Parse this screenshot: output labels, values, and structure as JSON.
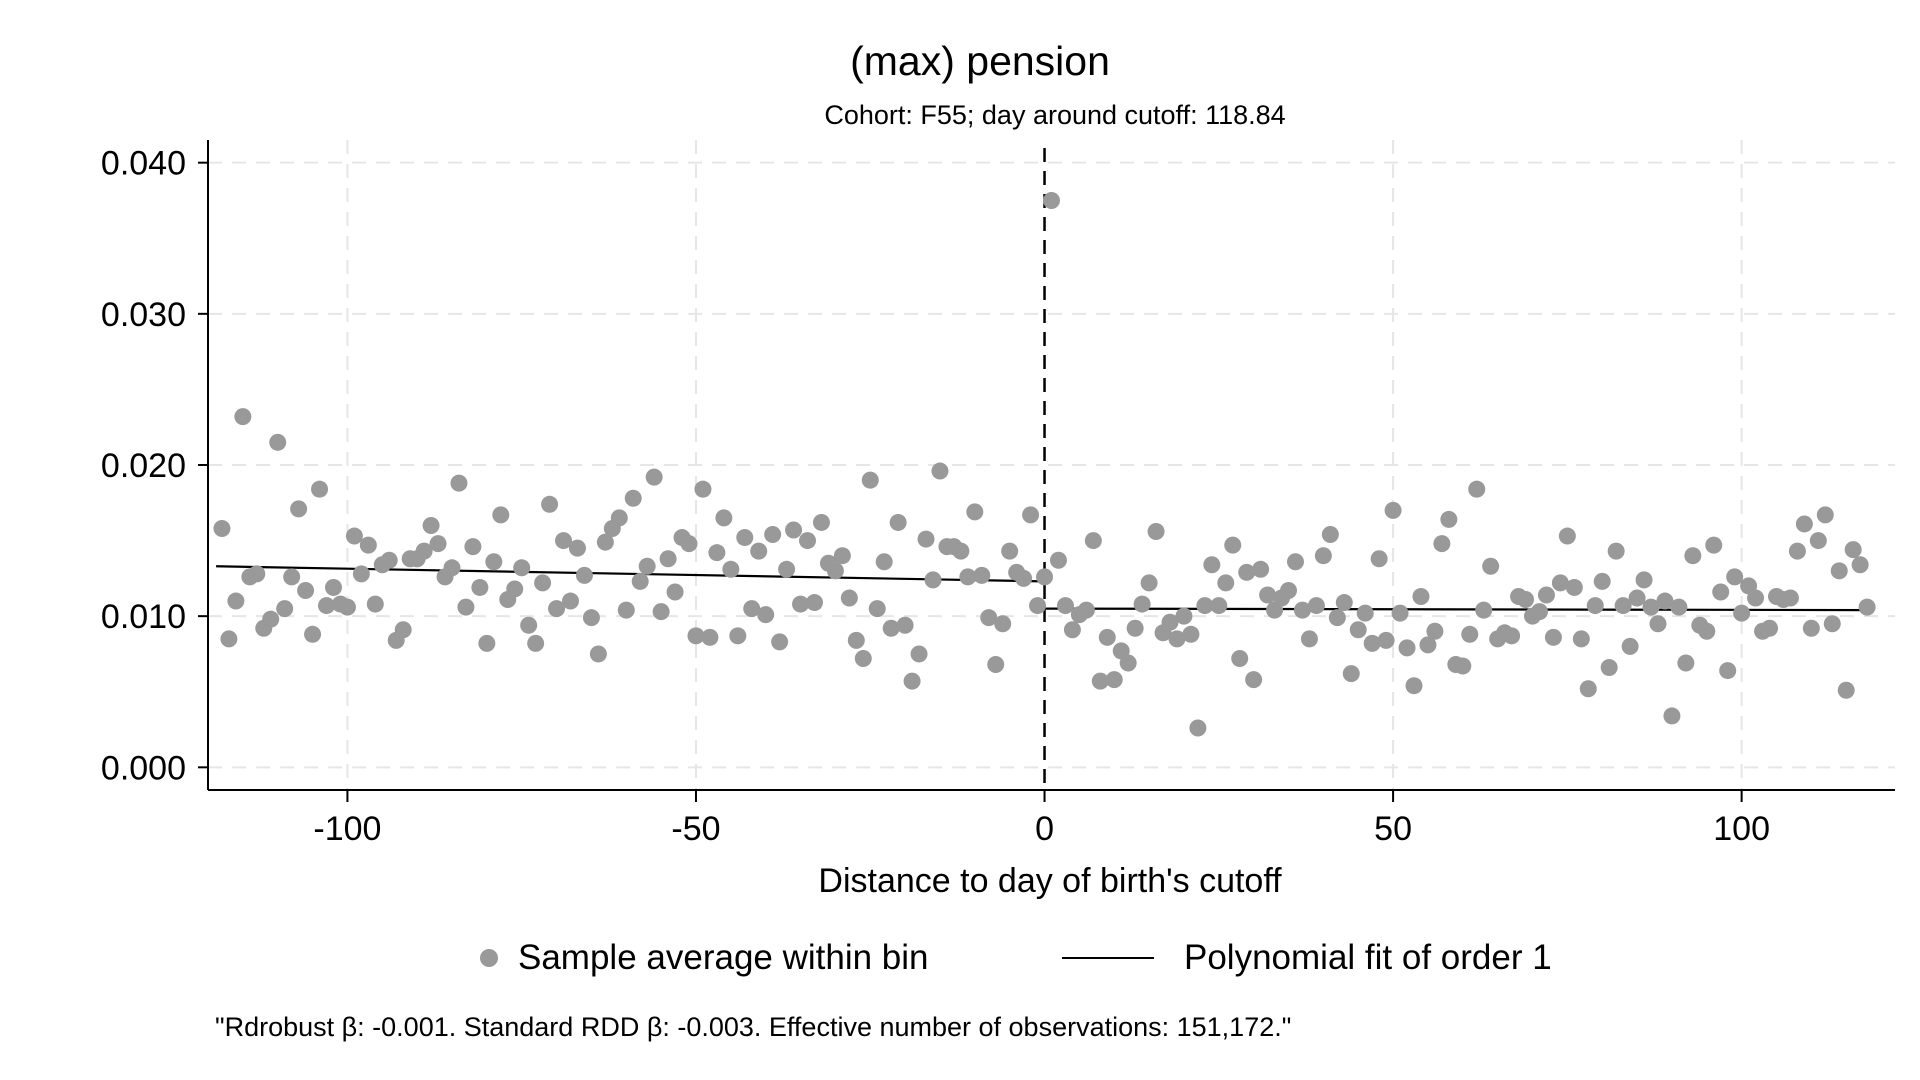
{
  "chart_data": {
    "type": "scatter",
    "title": "(max) pension",
    "subtitle": "Cohort: F55; day around cutoff: 118.84",
    "xlabel": "Distance to day of birth's cutoff",
    "ylabel": "",
    "xlim": [
      -120,
      122
    ],
    "ylim": [
      -0.0015,
      0.0415
    ],
    "x_ticks": [
      -100,
      -50,
      0,
      50,
      100
    ],
    "x_tick_labels": [
      "-100",
      "-50",
      "0",
      "50",
      "100"
    ],
    "y_ticks": [
      0,
      0.01,
      0.02,
      0.03,
      0.04
    ],
    "y_tick_labels": [
      "0.000",
      "0.010",
      "0.020",
      "0.030",
      "0.040"
    ],
    "grid": true,
    "cutoff_line_x": 0,
    "legend_position": "bottom",
    "legend": [
      "Sample average within bin",
      "Polynomial fit of order 1"
    ],
    "note": "\"Rdrobust β: -0.001. Standard RDD β: -0.003. Effective number of observations: 151,172.\"",
    "colors": {
      "points": "#999999",
      "fit": "#000000",
      "grid": "#e6e6e6"
    },
    "series": [
      {
        "name": "Sample average within bin",
        "kind": "points",
        "points": [
          [
            -118,
            0.0158
          ],
          [
            -117,
            0.0085
          ],
          [
            -116,
            0.011
          ],
          [
            -115,
            0.0232
          ],
          [
            -114,
            0.0126
          ],
          [
            -113,
            0.0128
          ],
          [
            -112,
            0.0092
          ],
          [
            -111,
            0.0098
          ],
          [
            -110,
            0.0215
          ],
          [
            -109,
            0.0105
          ],
          [
            -108,
            0.0126
          ],
          [
            -107,
            0.0171
          ],
          [
            -106,
            0.0117
          ],
          [
            -105,
            0.0088
          ],
          [
            -104,
            0.0184
          ],
          [
            -103,
            0.0107
          ],
          [
            -102,
            0.0119
          ],
          [
            -101,
            0.0108
          ],
          [
            -100,
            0.0106
          ],
          [
            -99,
            0.0153
          ],
          [
            -98,
            0.0128
          ],
          [
            -97,
            0.0147
          ],
          [
            -96,
            0.0108
          ],
          [
            -95,
            0.0134
          ],
          [
            -94,
            0.0137
          ],
          [
            -93,
            0.0084
          ],
          [
            -92,
            0.0091
          ],
          [
            -91,
            0.0138
          ],
          [
            -90,
            0.0138
          ],
          [
            -89,
            0.0143
          ],
          [
            -88,
            0.016
          ],
          [
            -87,
            0.0148
          ],
          [
            -86,
            0.0126
          ],
          [
            -85,
            0.0132
          ],
          [
            -84,
            0.0188
          ],
          [
            -83,
            0.0106
          ],
          [
            -82,
            0.0146
          ],
          [
            -81,
            0.0119
          ],
          [
            -80,
            0.0082
          ],
          [
            -79,
            0.0136
          ],
          [
            -78,
            0.0167
          ],
          [
            -77,
            0.0111
          ],
          [
            -76,
            0.0118
          ],
          [
            -75,
            0.0132
          ],
          [
            -74,
            0.0094
          ],
          [
            -73,
            0.0082
          ],
          [
            -72,
            0.0122
          ],
          [
            -71,
            0.0174
          ],
          [
            -70,
            0.0105
          ],
          [
            -69,
            0.015
          ],
          [
            -68,
            0.011
          ],
          [
            -67,
            0.0145
          ],
          [
            -66,
            0.0127
          ],
          [
            -65,
            0.0099
          ],
          [
            -64,
            0.0075
          ],
          [
            -63,
            0.0149
          ],
          [
            -62,
            0.0158
          ],
          [
            -61,
            0.0165
          ],
          [
            -60,
            0.0104
          ],
          [
            -59,
            0.0178
          ],
          [
            -58,
            0.0123
          ],
          [
            -57,
            0.0133
          ],
          [
            -56,
            0.0192
          ],
          [
            -55,
            0.0103
          ],
          [
            -54,
            0.0138
          ],
          [
            -53,
            0.0116
          ],
          [
            -52,
            0.0152
          ],
          [
            -51,
            0.0148
          ],
          [
            -50,
            0.0087
          ],
          [
            -49,
            0.0184
          ],
          [
            -48,
            0.0086
          ],
          [
            -47,
            0.0142
          ],
          [
            -46,
            0.0165
          ],
          [
            -45,
            0.0131
          ],
          [
            -44,
            0.0087
          ],
          [
            -43,
            0.0152
          ],
          [
            -42,
            0.0105
          ],
          [
            -41,
            0.0143
          ],
          [
            -40,
            0.0101
          ],
          [
            -39,
            0.0154
          ],
          [
            -38,
            0.0083
          ],
          [
            -37,
            0.0131
          ],
          [
            -36,
            0.0157
          ],
          [
            -35,
            0.0108
          ],
          [
            -34,
            0.015
          ],
          [
            -33,
            0.0109
          ],
          [
            -32,
            0.0162
          ],
          [
            -31,
            0.0135
          ],
          [
            -30,
            0.013
          ],
          [
            -29,
            0.014
          ],
          [
            -28,
            0.0112
          ],
          [
            -27,
            0.0084
          ],
          [
            -26,
            0.0072
          ],
          [
            -25,
            0.019
          ],
          [
            -24,
            0.0105
          ],
          [
            -23,
            0.0136
          ],
          [
            -22,
            0.0092
          ],
          [
            -21,
            0.0162
          ],
          [
            -20,
            0.0094
          ],
          [
            -19,
            0.0057
          ],
          [
            -18,
            0.0075
          ],
          [
            -17,
            0.0151
          ],
          [
            -16,
            0.0124
          ],
          [
            -15,
            0.0196
          ],
          [
            -14,
            0.0146
          ],
          [
            -13,
            0.0146
          ],
          [
            -12,
            0.0143
          ],
          [
            -11,
            0.0126
          ],
          [
            -10,
            0.0169
          ],
          [
            -9,
            0.0127
          ],
          [
            -8,
            0.0099
          ],
          [
            -7,
            0.0068
          ],
          [
            -6,
            0.0095
          ],
          [
            -5,
            0.0143
          ],
          [
            -4,
            0.0129
          ],
          [
            -3,
            0.0125
          ],
          [
            -2,
            0.0167
          ],
          [
            -1,
            0.0107
          ],
          [
            0,
            0.0126
          ],
          [
            1,
            0.0375
          ],
          [
            2,
            0.0137
          ],
          [
            3,
            0.0107
          ],
          [
            4,
            0.0091
          ],
          [
            5,
            0.0101
          ],
          [
            6,
            0.0104
          ],
          [
            7,
            0.015
          ],
          [
            8,
            0.0057
          ],
          [
            9,
            0.0086
          ],
          [
            10,
            0.0058
          ],
          [
            11,
            0.0077
          ],
          [
            12,
            0.0069
          ],
          [
            13,
            0.0092
          ],
          [
            14,
            0.0108
          ],
          [
            15,
            0.0122
          ],
          [
            16,
            0.0156
          ],
          [
            17,
            0.0089
          ],
          [
            18,
            0.0096
          ],
          [
            19,
            0.0085
          ],
          [
            20,
            0.01
          ],
          [
            21,
            0.0088
          ],
          [
            22,
            0.0026
          ],
          [
            23,
            0.0107
          ],
          [
            24,
            0.0134
          ],
          [
            25,
            0.0107
          ],
          [
            26,
            0.0122
          ],
          [
            27,
            0.0147
          ],
          [
            28,
            0.0072
          ],
          [
            29,
            0.0129
          ],
          [
            30,
            0.0058
          ],
          [
            31,
            0.0131
          ],
          [
            32,
            0.0114
          ],
          [
            33,
            0.0104
          ],
          [
            34,
            0.0112
          ],
          [
            35,
            0.0117
          ],
          [
            36,
            0.0136
          ],
          [
            37,
            0.0104
          ],
          [
            38,
            0.0085
          ],
          [
            39,
            0.0107
          ],
          [
            40,
            0.014
          ],
          [
            41,
            0.0154
          ],
          [
            42,
            0.0099
          ],
          [
            43,
            0.0109
          ],
          [
            44,
            0.0062
          ],
          [
            45,
            0.0091
          ],
          [
            46,
            0.0102
          ],
          [
            47,
            0.0082
          ],
          [
            48,
            0.0138
          ],
          [
            49,
            0.0084
          ],
          [
            50,
            0.017
          ],
          [
            51,
            0.0102
          ],
          [
            52,
            0.0079
          ],
          [
            53,
            0.0054
          ],
          [
            54,
            0.0113
          ],
          [
            55,
            0.0081
          ],
          [
            56,
            0.009
          ],
          [
            57,
            0.0148
          ],
          [
            58,
            0.0164
          ],
          [
            59,
            0.0068
          ],
          [
            60,
            0.0067
          ],
          [
            61,
            0.0088
          ],
          [
            62,
            0.0184
          ],
          [
            63,
            0.0104
          ],
          [
            64,
            0.0133
          ],
          [
            65,
            0.0085
          ],
          [
            66,
            0.0089
          ],
          [
            67,
            0.0087
          ],
          [
            68,
            0.0113
          ],
          [
            69,
            0.0111
          ],
          [
            70,
            0.01
          ],
          [
            71,
            0.0103
          ],
          [
            72,
            0.0114
          ],
          [
            73,
            0.0086
          ],
          [
            74,
            0.0122
          ],
          [
            75,
            0.0153
          ],
          [
            76,
            0.0119
          ],
          [
            77,
            0.0085
          ],
          [
            78,
            0.0052
          ],
          [
            79,
            0.0107
          ],
          [
            80,
            0.0123
          ],
          [
            81,
            0.0066
          ],
          [
            82,
            0.0143
          ],
          [
            83,
            0.0107
          ],
          [
            84,
            0.008
          ],
          [
            85,
            0.0112
          ],
          [
            86,
            0.0124
          ],
          [
            87,
            0.0106
          ],
          [
            88,
            0.0095
          ],
          [
            89,
            0.011
          ],
          [
            90,
            0.0034
          ],
          [
            91,
            0.0106
          ],
          [
            92,
            0.0069
          ],
          [
            93,
            0.014
          ],
          [
            94,
            0.0094
          ],
          [
            95,
            0.009
          ],
          [
            96,
            0.0147
          ],
          [
            97,
            0.0116
          ],
          [
            98,
            0.0064
          ],
          [
            99,
            0.0126
          ],
          [
            100,
            0.0102
          ],
          [
            101,
            0.012
          ],
          [
            102,
            0.0112
          ],
          [
            103,
            0.009
          ],
          [
            104,
            0.0092
          ],
          [
            105,
            0.0113
          ],
          [
            106,
            0.0111
          ],
          [
            107,
            0.0112
          ],
          [
            108,
            0.0143
          ],
          [
            109,
            0.0161
          ],
          [
            110,
            0.0092
          ],
          [
            111,
            0.015
          ],
          [
            112,
            0.0167
          ],
          [
            113,
            0.0095
          ],
          [
            114,
            0.013
          ],
          [
            115,
            0.0051
          ],
          [
            116,
            0.0144
          ],
          [
            117,
            0.0134
          ],
          [
            118,
            0.0106
          ]
        ]
      },
      {
        "name": "Polynomial fit of order 1",
        "kind": "line",
        "segments": [
          [
            [
              -118.84,
              0.0133
            ],
            [
              0,
              0.0123
            ]
          ],
          [
            [
              0,
              0.0105
            ],
            [
              118.84,
              0.0104
            ]
          ]
        ]
      }
    ]
  }
}
